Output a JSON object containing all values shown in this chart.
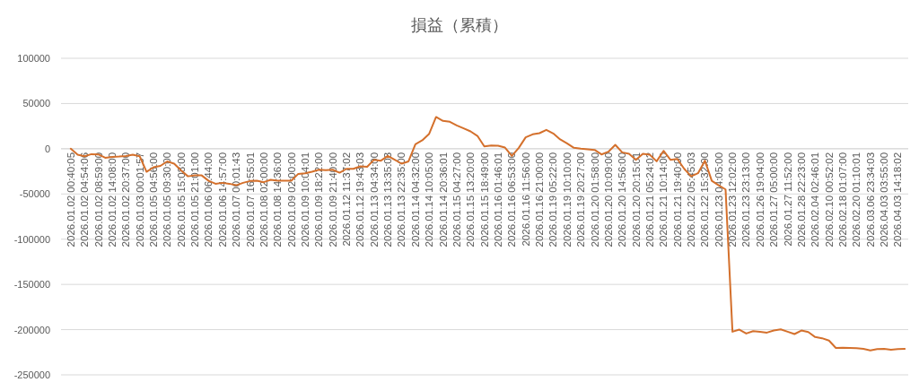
{
  "chart_data": {
    "type": "line",
    "title": "損益（累積）",
    "categories": [
      "2026.01.02 00:40:05",
      null,
      "2026.01.02 04:54:06",
      null,
      "2026.01.02 08:59:00",
      null,
      "2026.01.02 14:08:00",
      null,
      "2026.01.02 20:37:00",
      null,
      "2026.01.03 00:01:57",
      null,
      "2026.01.05 04:56:00",
      null,
      "2026.01.05 09:30:00",
      null,
      "2026.01.05 15:08:00",
      null,
      "2026.01.05 21:01:00",
      null,
      "2026.01.06 06:44:00",
      null,
      "2026.01.06 14:57:00",
      null,
      "2026.01.07 00:01:43",
      null,
      "2026.01.07 16:55:01",
      null,
      "2026.01.08 02:00:00",
      null,
      "2026.01.08 14:36:00",
      null,
      "2026.01.09 02:00:00",
      null,
      "2026.01.09 10:04:01",
      null,
      "2026.01.09 18:22:00",
      null,
      "2026.01.09 21:40:00",
      null,
      "2026.01.12 11:37:02",
      null,
      "2026.01.12 19:43:03",
      null,
      "2026.01.13 04:34:00",
      null,
      "2026.01.13 13:35:03",
      null,
      "2026.01.13 22:35:00",
      null,
      "2026.01.14 04:32:00",
      null,
      "2026.01.14 10:05:00",
      null,
      "2026.01.14 20:36:01",
      null,
      "2026.01.15 04:27:00",
      null,
      "2026.01.15 13:20:00",
      null,
      "2026.01.15 18:49:00",
      null,
      "2026.01.16 01:46:01",
      null,
      "2026.01.16 06:53:00",
      null,
      "2026.01.16 11:56:00",
      null,
      "2026.01.16 21:00:00",
      null,
      "2026.01.19 05:22:00",
      null,
      "2026.01.19 10:10:00",
      null,
      "2026.01.19 20:27:00",
      null,
      "2026.01.20 01:58:00",
      null,
      "2026.01.20 10:09:00",
      null,
      "2026.01.20 14:56:00",
      null,
      "2026.01.20 20:15:01",
      null,
      "2026.01.21 05:24:02",
      null,
      "2026.01.21 10:14:00",
      null,
      "2026.01.21 19:40:00",
      null,
      "2026.01.22 05:45:03",
      null,
      "2026.01.22 15:32:00",
      null,
      "2026.01.23 04:05:00",
      null,
      "2026.01.23 12:02:00",
      null,
      "2026.01.23 23:13:00",
      null,
      "2026.01.26 19:04:00",
      null,
      "2026.01.27 05:00:00",
      null,
      "2026.01.27 11:52:00",
      null,
      "2026.01.28 22:23:00",
      null,
      "2026.02.04 02:46:01",
      null,
      "2026.02.10 00:52:02",
      null,
      "2026.02.18 01:07:00",
      null,
      "2026.02.20 01:10:01",
      null,
      "2026.03.06 23:34:03",
      null,
      "2026.04.03 03:55:00",
      null,
      "2026.04.03 14:18:02",
      null
    ],
    "values": [
      0,
      -6600,
      -8300,
      -6000,
      -6300,
      -10000,
      -9000,
      -8600,
      -8000,
      -6600,
      -8300,
      -25500,
      -20500,
      -19000,
      -14000,
      -16500,
      -24000,
      -30500,
      -29500,
      -29500,
      -35500,
      -38700,
      -37700,
      -38700,
      -40400,
      -37700,
      -35700,
      -35400,
      -37000,
      -34400,
      -35400,
      -35400,
      -35400,
      -27800,
      -27100,
      -25500,
      -23200,
      -23800,
      -23200,
      -26500,
      -22200,
      -22200,
      -19500,
      -19900,
      -12200,
      -13200,
      -8000,
      -12200,
      -16500,
      -14000,
      5000,
      9300,
      16500,
      35100,
      30800,
      29800,
      25800,
      22500,
      19200,
      14200,
      2600,
      3600,
      3300,
      1300,
      -8000,
      1000,
      12600,
      15900,
      17200,
      20900,
      16900,
      10300,
      6000,
      1000,
      0,
      -700,
      -1300,
      -6300,
      -3300,
      4300,
      -4000,
      -5600,
      -12200,
      -5600,
      -6600,
      -13900,
      -2300,
      -12200,
      -11300,
      -22200,
      -30500,
      -27100,
      -13200,
      -35400,
      -40400,
      -45000,
      -202300,
      -200000,
      -204300,
      -201600,
      -202300,
      -203300,
      -201000,
      -199700,
      -202300,
      -204900,
      -201000,
      -202600,
      -208200,
      -209500,
      -212100,
      -220300,
      -219900,
      -220300,
      -220600,
      -221300,
      -222900,
      -221600,
      -221300,
      -222200,
      -221600,
      -221300
    ],
    "color": "#d4702c",
    "ylim": [
      -250000,
      100000
    ],
    "yticks": [
      -250000,
      -200000,
      -150000,
      -100000,
      -50000,
      0,
      50000,
      100000
    ],
    "grid": "y"
  }
}
